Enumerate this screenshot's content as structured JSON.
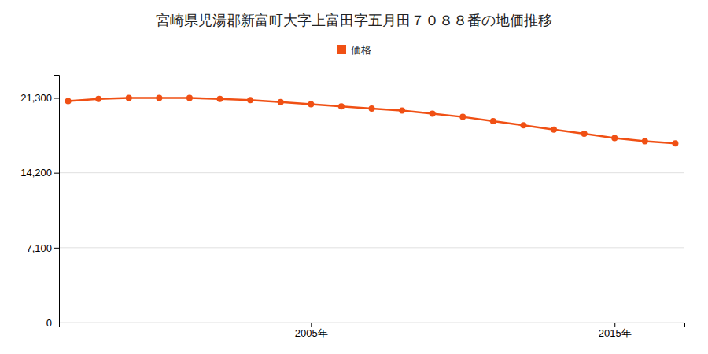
{
  "chart_data": {
    "type": "line",
    "title": "宮崎県児湯郡新富町大字上富田字五月田７０８８番の地価推移",
    "x": [
      1997,
      1998,
      1999,
      2000,
      2001,
      2002,
      2003,
      2004,
      2005,
      2006,
      2007,
      2008,
      2009,
      2010,
      2011,
      2012,
      2013,
      2014,
      2015,
      2016,
      2017
    ],
    "series": [
      {
        "name": "価格",
        "color": "#f05014",
        "marker": "circle",
        "values": [
          21000,
          21200,
          21300,
          21300,
          21300,
          21200,
          21100,
          20900,
          20700,
          20500,
          20300,
          20100,
          19800,
          19500,
          19100,
          18700,
          18300,
          17900,
          17500,
          17200,
          17000
        ]
      }
    ],
    "xlim": [
      1996.7,
      2017.3
    ],
    "xticks": [
      {
        "value": 2005,
        "label": "2005年"
      },
      {
        "value": 2015,
        "label": "2015年"
      }
    ],
    "ylim": [
      0,
      23500
    ],
    "yticks": [
      0,
      {
        "value": 7100,
        "label": "7,100"
      },
      {
        "value": 14200,
        "label": "14,200"
      },
      {
        "value": 21300,
        "label": "21,300"
      }
    ],
    "grid": true,
    "legend": "top"
  }
}
